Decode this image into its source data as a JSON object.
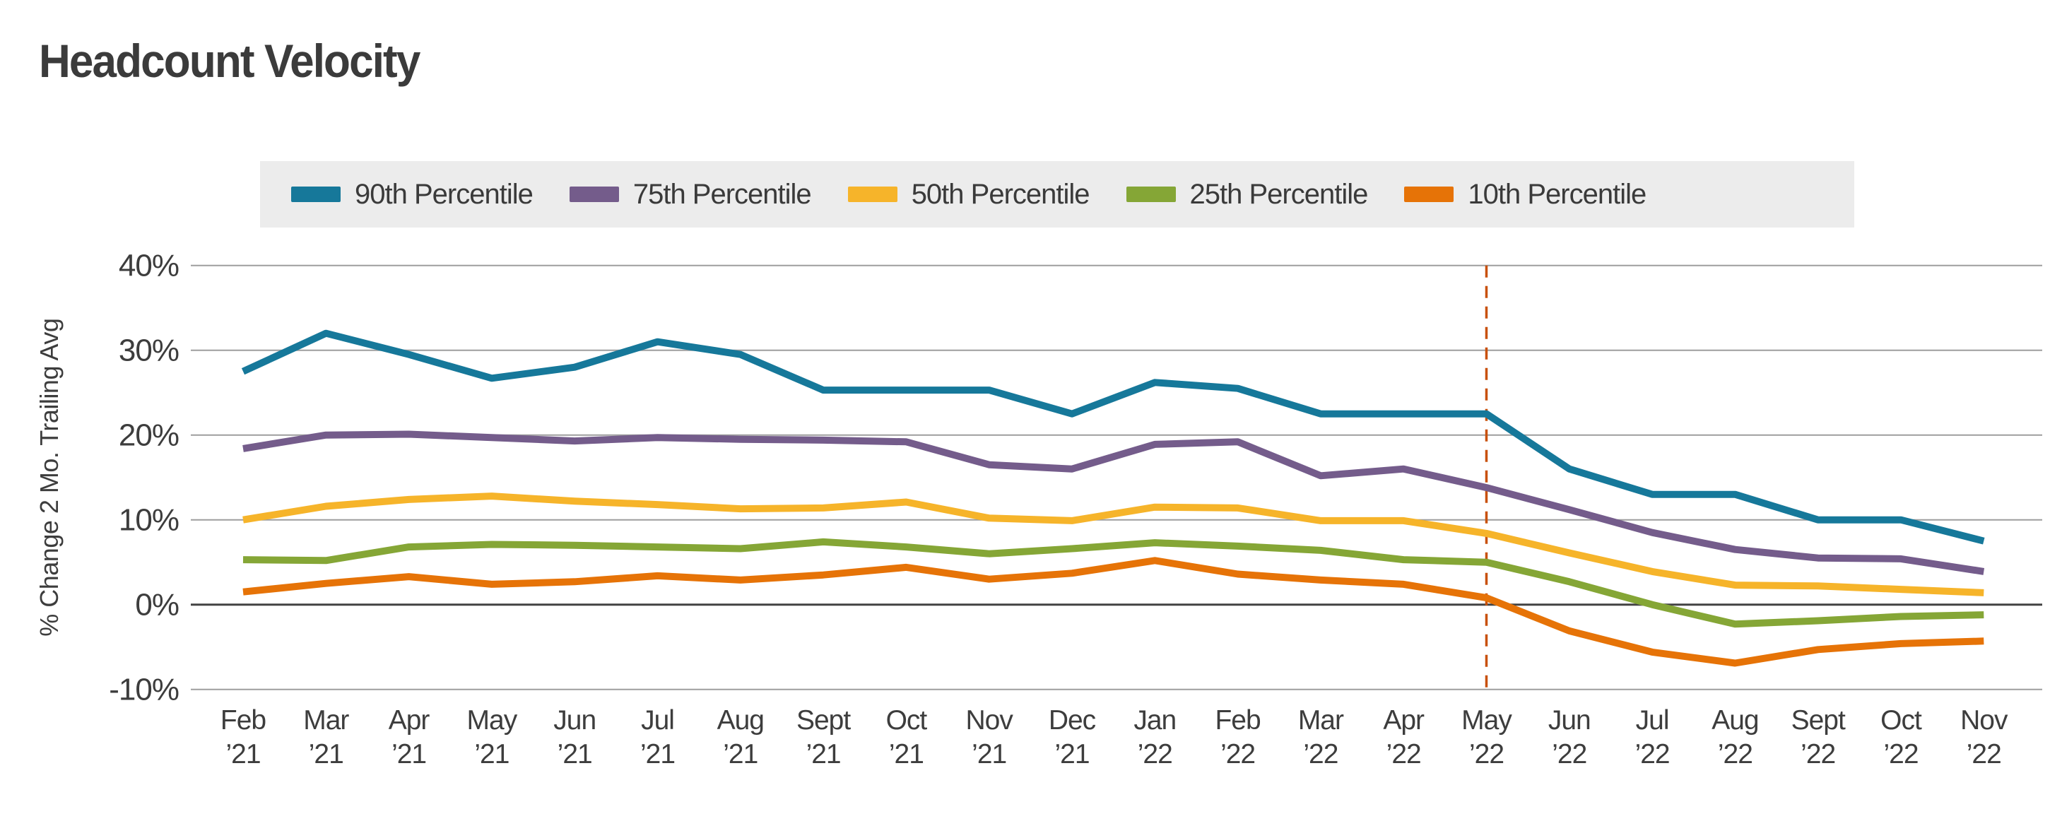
{
  "page": {
    "title": "Headcount Velocity"
  },
  "chart_data": {
    "type": "line",
    "title": "Headcount Velocity",
    "xlabel": "",
    "ylabel": "% Change 2 Mo. Trailing Avg",
    "ylim": [
      -10,
      40
    ],
    "y_ticks": [
      40,
      30,
      20,
      10,
      0,
      -10
    ],
    "y_tick_suffix": "%",
    "grid": "horizontal",
    "legend_position": "top",
    "x_categories": [
      {
        "month": "Feb",
        "year": "’21"
      },
      {
        "month": "Mar",
        "year": "’21"
      },
      {
        "month": "Apr",
        "year": "’21"
      },
      {
        "month": "May",
        "year": "’21"
      },
      {
        "month": "Jun",
        "year": "’21"
      },
      {
        "month": "Jul",
        "year": "’21"
      },
      {
        "month": "Aug",
        "year": "’21"
      },
      {
        "month": "Sept",
        "year": "’21"
      },
      {
        "month": "Oct",
        "year": "’21"
      },
      {
        "month": "Nov",
        "year": "’21"
      },
      {
        "month": "Dec",
        "year": "’21"
      },
      {
        "month": "Jan",
        "year": "’22"
      },
      {
        "month": "Feb",
        "year": "’22"
      },
      {
        "month": "Mar",
        "year": "’22"
      },
      {
        "month": "Apr",
        "year": "’22"
      },
      {
        "month": "May",
        "year": "’22"
      },
      {
        "month": "Jun",
        "year": "’22"
      },
      {
        "month": "Jul",
        "year": "’22"
      },
      {
        "month": "Aug",
        "year": "’22"
      },
      {
        "month": "Sept",
        "year": "’22"
      },
      {
        "month": "Oct",
        "year": "’22"
      },
      {
        "month": "Nov",
        "year": "’22"
      }
    ],
    "series": [
      {
        "name": "90th Percentile",
        "color": "#16789A",
        "values": [
          27.5,
          32,
          29.5,
          26.7,
          28,
          31,
          29.5,
          25.3,
          25.3,
          25.3,
          22.5,
          26.2,
          25.5,
          22.5,
          22.5,
          22.5,
          16,
          13,
          13,
          10,
          10,
          7.5
        ]
      },
      {
        "name": "75th Percentile",
        "color": "#745C8B",
        "values": [
          18.4,
          20,
          20.1,
          19.7,
          19.3,
          19.7,
          19.5,
          19.4,
          19.2,
          16.5,
          16,
          18.9,
          19.2,
          15.2,
          16,
          13.8,
          11.2,
          8.5,
          6.5,
          5.5,
          5.4,
          3.9
        ]
      },
      {
        "name": "50th Percentile",
        "color": "#F6B42A",
        "values": [
          10,
          11.6,
          12.4,
          12.8,
          12.2,
          11.8,
          11.3,
          11.4,
          12.1,
          10.2,
          9.9,
          11.5,
          11.4,
          9.9,
          9.9,
          8.4,
          6.1,
          3.9,
          2.3,
          2.2,
          1.8,
          1.4
        ]
      },
      {
        "name": "25th Percentile",
        "color": "#85A636",
        "values": [
          5.3,
          5.2,
          6.8,
          7.1,
          7,
          6.8,
          6.6,
          7.4,
          6.8,
          6,
          6.6,
          7.3,
          6.9,
          6.4,
          5.3,
          5,
          2.7,
          0,
          -2.3,
          -1.9,
          -1.4,
          -1.2
        ]
      },
      {
        "name": "10th Percentile",
        "color": "#E67307",
        "values": [
          1.5,
          2.5,
          3.3,
          2.4,
          2.7,
          3.4,
          2.9,
          3.5,
          4.4,
          3,
          3.7,
          5.2,
          3.6,
          2.9,
          2.4,
          0.8,
          -3.1,
          -5.6,
          -6.9,
          -5.3,
          -4.6,
          -4.3
        ]
      }
    ],
    "annotations": {
      "dashed_vline_at_month": "May",
      "dashed_vline_at_year": "’22",
      "dashed_vline_color": "#C8500A"
    },
    "colors": {
      "grid": "#9e9e9e",
      "zero_line": "#424242",
      "text": "#3d3d3d",
      "legend_background": "#ececec"
    }
  }
}
